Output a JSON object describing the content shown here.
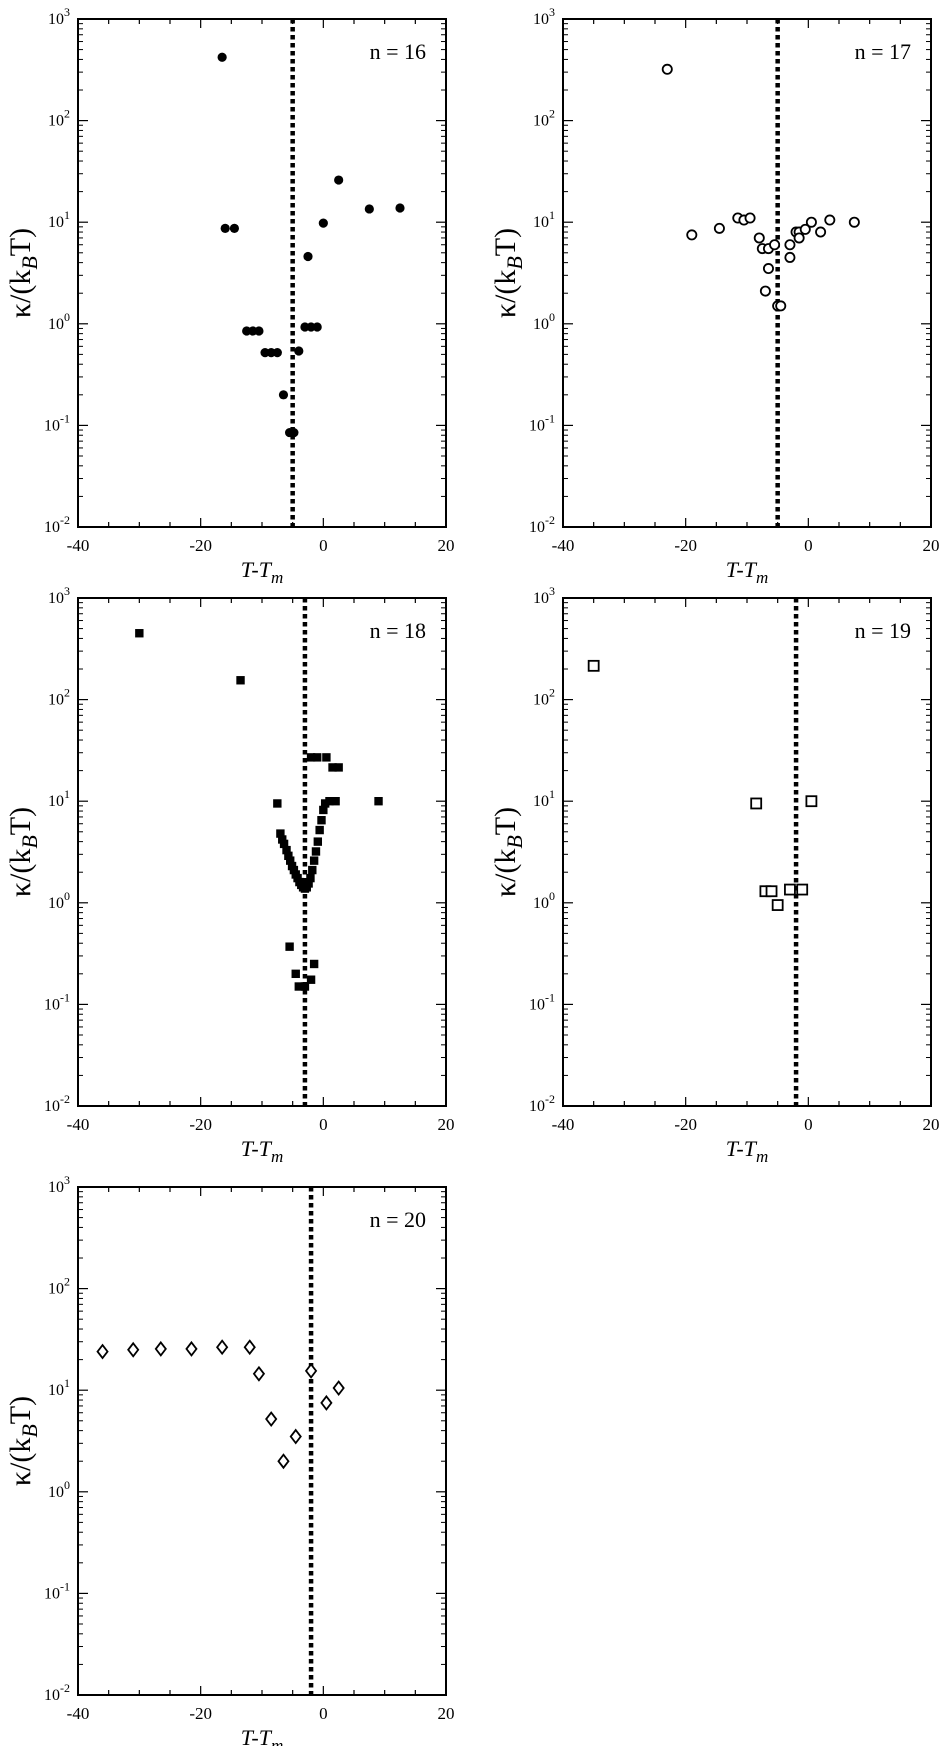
{
  "chart_data": [
    {
      "type": "scatter",
      "annotation": "n = 16",
      "marker": "filled-circle",
      "xlabel": "T-T",
      "xlabel_sub": "m",
      "ylabel": "κ/(k",
      "ylabel_sub": "B",
      "ylabel_end": "T)",
      "xlim": [
        -40,
        20
      ],
      "ylim": [
        0.01,
        1000
      ],
      "yscale": "log",
      "xticks": [
        "-40",
        "-20",
        "0",
        "20"
      ],
      "yticks": [
        {
          "base": "10",
          "exp": "-2"
        },
        {
          "base": "10",
          "exp": "-1"
        },
        {
          "base": "10",
          "exp": "0"
        },
        {
          "base": "10",
          "exp": "1"
        },
        {
          "base": "10",
          "exp": "2"
        },
        {
          "base": "10",
          "exp": "3"
        }
      ],
      "vline": -5,
      "points": [
        [
          -16.5,
          420
        ],
        [
          -16,
          8.7
        ],
        [
          -14.5,
          8.7
        ],
        [
          -12.5,
          0.85
        ],
        [
          -11.5,
          0.85
        ],
        [
          -10.5,
          0.85
        ],
        [
          -9.5,
          0.52
        ],
        [
          -8.5,
          0.52
        ],
        [
          -7.5,
          0.52
        ],
        [
          -6.5,
          0.2
        ],
        [
          -5.5,
          0.085
        ],
        [
          -4.8,
          0.085
        ],
        [
          -4,
          0.54
        ],
        [
          -3,
          0.93
        ],
        [
          -2,
          0.93
        ],
        [
          -1,
          0.93
        ],
        [
          -2.5,
          4.6
        ],
        [
          0,
          9.8
        ],
        [
          2.5,
          26
        ],
        [
          7.5,
          13.5
        ],
        [
          12.5,
          13.8
        ]
      ]
    },
    {
      "type": "scatter",
      "annotation": "n = 17",
      "marker": "open-circle",
      "xlabel": "T-T",
      "xlabel_sub": "m",
      "ylabel": "κ/(k",
      "ylabel_sub": "B",
      "ylabel_end": "T)",
      "xlim": [
        -40,
        20
      ],
      "ylim": [
        0.01,
        1000
      ],
      "yscale": "log",
      "xticks": [
        "-40",
        "-20",
        "0",
        "20"
      ],
      "yticks": [
        {
          "base": "10",
          "exp": "-2"
        },
        {
          "base": "10",
          "exp": "-1"
        },
        {
          "base": "10",
          "exp": "0"
        },
        {
          "base": "10",
          "exp": "1"
        },
        {
          "base": "10",
          "exp": "2"
        },
        {
          "base": "10",
          "exp": "3"
        }
      ],
      "vline": -5,
      "points": [
        [
          -23,
          320
        ],
        [
          -19,
          7.5
        ],
        [
          -14.5,
          8.7
        ],
        [
          -11.5,
          11
        ],
        [
          -10.5,
          10.5
        ],
        [
          -9.5,
          11
        ],
        [
          -8,
          7
        ],
        [
          -7.5,
          5.5
        ],
        [
          -6.5,
          5.5
        ],
        [
          -5.5,
          6
        ],
        [
          -6.5,
          3.5
        ],
        [
          -7,
          2.1
        ],
        [
          -5,
          1.5
        ],
        [
          -4.5,
          1.5
        ],
        [
          -3,
          4.5
        ],
        [
          -3,
          6
        ],
        [
          -2,
          8
        ],
        [
          -1.5,
          8
        ],
        [
          -1.5,
          7
        ],
        [
          -0.5,
          8.5
        ],
        [
          0.5,
          10
        ],
        [
          2,
          8
        ],
        [
          3.5,
          10.5
        ],
        [
          7.5,
          10
        ]
      ]
    },
    {
      "type": "scatter",
      "annotation": "n = 18",
      "marker": "filled-square",
      "xlabel": "T-T",
      "xlabel_sub": "m",
      "ylabel": "κ/(k",
      "ylabel_sub": "B",
      "ylabel_end": "T)",
      "xlim": [
        -40,
        20
      ],
      "ylim": [
        0.01,
        1000
      ],
      "yscale": "log",
      "xticks": [
        "-40",
        "-20",
        "0",
        "20"
      ],
      "yticks": [
        {
          "base": "10",
          "exp": "-2"
        },
        {
          "base": "10",
          "exp": "-1"
        },
        {
          "base": "10",
          "exp": "0"
        },
        {
          "base": "10",
          "exp": "1"
        },
        {
          "base": "10",
          "exp": "2"
        },
        {
          "base": "10",
          "exp": "3"
        }
      ],
      "vline": -3,
      "points": [
        [
          -30,
          450
        ],
        [
          -13.5,
          155
        ],
        [
          -7.5,
          9.5
        ],
        [
          -7,
          4.8
        ],
        [
          -6.7,
          4.2
        ],
        [
          -6.4,
          3.8
        ],
        [
          -6,
          3.3
        ],
        [
          -5.7,
          2.9
        ],
        [
          -5.4,
          2.6
        ],
        [
          -5.1,
          2.3
        ],
        [
          -4.8,
          2.1
        ],
        [
          -4.5,
          1.9
        ],
        [
          -4.2,
          1.75
        ],
        [
          -3.9,
          1.6
        ],
        [
          -3.6,
          1.5
        ],
        [
          -3.3,
          1.42
        ],
        [
          -3,
          1.38
        ],
        [
          -2.7,
          1.42
        ],
        [
          -2.4,
          1.55
        ],
        [
          -2.1,
          1.75
        ],
        [
          -1.8,
          2.1
        ],
        [
          -1.5,
          2.6
        ],
        [
          -1.2,
          3.2
        ],
        [
          -0.9,
          4.0
        ],
        [
          -0.6,
          5.2
        ],
        [
          -0.3,
          6.5
        ],
        [
          0,
          8.2
        ],
        [
          0.3,
          9.5
        ],
        [
          1,
          10
        ],
        [
          2,
          10
        ],
        [
          -2,
          27
        ],
        [
          -1,
          27
        ],
        [
          0.5,
          27
        ],
        [
          1.5,
          21.5
        ],
        [
          2.5,
          21.5
        ],
        [
          9,
          10
        ],
        [
          -5.5,
          0.37
        ],
        [
          -4.5,
          0.2
        ],
        [
          -4,
          0.15
        ],
        [
          -3,
          0.15
        ],
        [
          -2,
          0.175
        ],
        [
          -1.5,
          0.25
        ]
      ]
    },
    {
      "type": "scatter",
      "annotation": "n = 19",
      "marker": "open-square",
      "xlabel": "T-T",
      "xlabel_sub": "m",
      "ylabel": "κ/(k",
      "ylabel_sub": "B",
      "ylabel_end": "T)",
      "xlim": [
        -40,
        20
      ],
      "ylim": [
        0.01,
        1000
      ],
      "yscale": "log",
      "xticks": [
        "-40",
        "-20",
        "0",
        "20"
      ],
      "yticks": [
        {
          "base": "10",
          "exp": "-2"
        },
        {
          "base": "10",
          "exp": "-1"
        },
        {
          "base": "10",
          "exp": "0"
        },
        {
          "base": "10",
          "exp": "1"
        },
        {
          "base": "10",
          "exp": "2"
        },
        {
          "base": "10",
          "exp": "3"
        }
      ],
      "vline": -2,
      "points": [
        [
          -35,
          215
        ],
        [
          -8.5,
          9.5
        ],
        [
          0.5,
          10
        ],
        [
          -7,
          1.3
        ],
        [
          -6,
          1.3
        ],
        [
          -5,
          0.95
        ],
        [
          -3,
          1.35
        ],
        [
          -1,
          1.35
        ]
      ]
    },
    {
      "type": "scatter",
      "annotation": "n = 20",
      "marker": "open-diamond",
      "xlabel": "T-T",
      "xlabel_sub": "m",
      "ylabel": "κ/(k",
      "ylabel_sub": "B",
      "ylabel_end": "T)",
      "xlim": [
        -40,
        20
      ],
      "ylim": [
        0.01,
        1000
      ],
      "yscale": "log",
      "xticks": [
        "-40",
        "-20",
        "0",
        "20"
      ],
      "yticks": [
        {
          "base": "10",
          "exp": "-2"
        },
        {
          "base": "10",
          "exp": "-1"
        },
        {
          "base": "10",
          "exp": "0"
        },
        {
          "base": "10",
          "exp": "1"
        },
        {
          "base": "10",
          "exp": "2"
        },
        {
          "base": "10",
          "exp": "3"
        }
      ],
      "vline": -2,
      "points": [
        [
          -36,
          24
        ],
        [
          -31,
          25
        ],
        [
          -26.5,
          25.5
        ],
        [
          -21.5,
          25.5
        ],
        [
          -16.5,
          26.5
        ],
        [
          -12,
          26.5
        ],
        [
          -10.5,
          14.5
        ],
        [
          -8.5,
          5.2
        ],
        [
          -6.5,
          2.0
        ],
        [
          -4.5,
          3.5
        ],
        [
          -2,
          15.5
        ],
        [
          0.5,
          7.5
        ],
        [
          2.5,
          10.5
        ]
      ]
    }
  ]
}
